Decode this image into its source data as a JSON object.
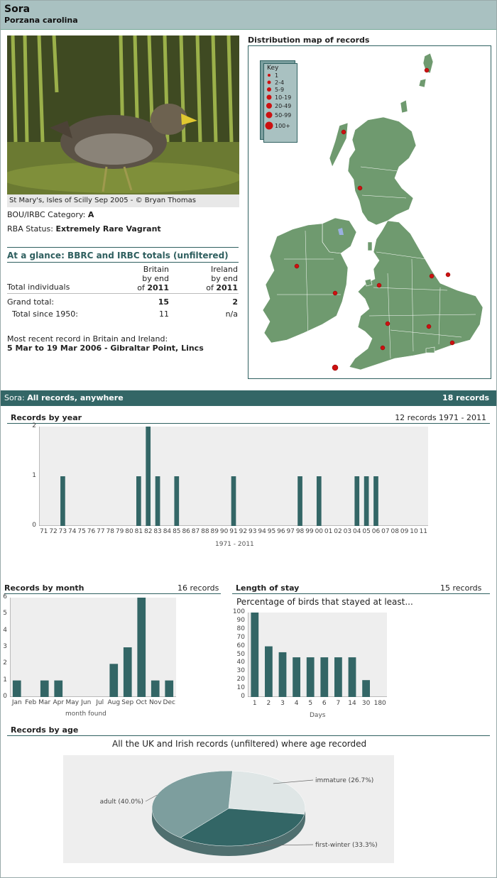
{
  "species": {
    "common_name": "Sora",
    "scientific_name": "Porzana carolina"
  },
  "photo": {
    "caption": "St Mary's, Isles of Scilly Sep 2005 - © Bryan Thomas"
  },
  "category": {
    "label": "BOU/IRBC Category:",
    "value": "A"
  },
  "rba_status": {
    "label": "RBA Status:",
    "value": "Extremely Rare Vagrant"
  },
  "glance": {
    "title": "At a glance: BBRC and IRBC totals (unfiltered)",
    "col_britain_line1": "Britain",
    "col_britain_line2": "by end",
    "col_britain_of": "of",
    "col_britain_year": "2011",
    "col_ireland_line1": "Ireland",
    "col_ireland_line2": "by end",
    "col_ireland_of": "of",
    "col_ireland_year": "2011",
    "total_individuals_label": "Total individuals",
    "grand_total_label": "Grand total:",
    "grand_total_britain": "15",
    "grand_total_ireland": "2",
    "since1950_label": "Total since 1950:",
    "since1950_britain": "11",
    "since1950_ireland": "n/a"
  },
  "recent": {
    "label": "Most recent record in Britain and Ireland:",
    "value": "5 Mar to 19 Mar 2006 - Gibraltar Point, Lincs"
  },
  "map": {
    "title": "Distribution map of records",
    "key_title": "Key",
    "key_items": [
      "1",
      "2-4",
      "5-9",
      "10-19",
      "20-49",
      "50-99",
      "100+"
    ],
    "land_color": "#6f9a6f",
    "dot_color": "#cc1111"
  },
  "section": {
    "prefix": "Sora:",
    "title": "All records, anywhere",
    "count": "18 records"
  },
  "by_year": {
    "title": "Records by year",
    "summary": "12 records 1971 - 2011",
    "xlabel": "1971 - 2011"
  },
  "by_month": {
    "title": "Records by month",
    "summary": "16 records",
    "xlabel": "month found"
  },
  "stay": {
    "title": "Length of stay",
    "summary": "15 records",
    "subtitle": "Percentage of birds that stayed at least...",
    "xlabel": "Days"
  },
  "age": {
    "title": "Records by age",
    "subtitle": "All the UK and Irish records (unfiltered) where age recorded"
  },
  "chart_data": [
    {
      "type": "bar",
      "categories": [
        "71",
        "72",
        "73",
        "74",
        "75",
        "76",
        "77",
        "78",
        "79",
        "80",
        "81",
        "82",
        "83",
        "84",
        "85",
        "86",
        "87",
        "88",
        "89",
        "90",
        "91",
        "92",
        "93",
        "94",
        "95",
        "96",
        "97",
        "98",
        "99",
        "00",
        "01",
        "02",
        "03",
        "04",
        "05",
        "06",
        "07",
        "08",
        "09",
        "10",
        "11"
      ],
      "values": [
        0,
        0,
        1,
        0,
        0,
        0,
        0,
        0,
        0,
        0,
        1,
        2,
        1,
        0,
        1,
        0,
        0,
        0,
        0,
        0,
        1,
        0,
        0,
        0,
        0,
        0,
        0,
        1,
        0,
        1,
        0,
        0,
        0,
        1,
        1,
        1,
        0,
        0,
        0,
        0,
        0
      ],
      "xlabel": "1971 - 2011",
      "ylim": [
        0,
        2
      ],
      "yticks": [
        "0",
        "1",
        "2"
      ]
    },
    {
      "type": "bar",
      "categories": [
        "Jan",
        "Feb",
        "Mar",
        "Apr",
        "May",
        "Jun",
        "Jul",
        "Aug",
        "Sep",
        "Oct",
        "Nov",
        "Dec"
      ],
      "values": [
        1,
        0,
        1,
        1,
        0,
        0,
        0,
        2,
        3,
        6,
        1,
        1
      ],
      "xlabel": "month found",
      "ylim": [
        0,
        6
      ],
      "yticks": [
        "0",
        "1",
        "2",
        "3",
        "4",
        "5",
        "6"
      ]
    },
    {
      "type": "bar",
      "categories": [
        "1",
        "2",
        "3",
        "4",
        "5",
        "6",
        "7",
        "14",
        "30",
        "180"
      ],
      "values": [
        100,
        60,
        53,
        47,
        47,
        47,
        47,
        47,
        20,
        0
      ],
      "xlabel": "Days",
      "ylim": [
        0,
        100
      ],
      "yticks": [
        "0",
        "10",
        "20",
        "30",
        "40",
        "50",
        "60",
        "70",
        "80",
        "90",
        "100"
      ]
    },
    {
      "type": "pie",
      "labels": [
        "immature (26.7%)",
        "first-winter (33.3%)",
        "adult (40.0%)"
      ],
      "values": [
        26.7,
        33.3,
        40.0
      ],
      "colors": [
        "#dfe6e6",
        "#336666",
        "#7d9e9e"
      ]
    }
  ]
}
